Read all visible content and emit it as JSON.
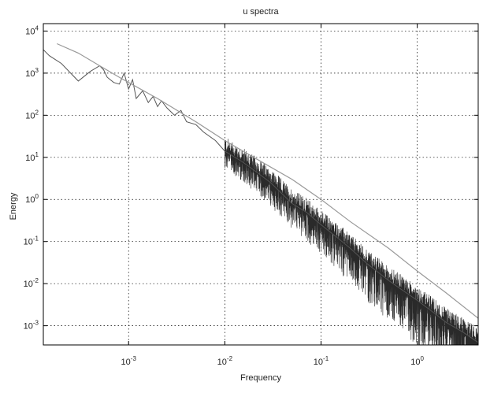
{
  "chart_data": {
    "type": "line",
    "title": "u spectra",
    "xlabel": "Frequency",
    "ylabel": "Energy",
    "xscale": "log",
    "yscale": "log",
    "xlim": [
      0.00013,
      4.3
    ],
    "ylim": [
      0.00035,
      15000
    ],
    "grid": true,
    "legend": "none",
    "x_ticks": [
      {
        "value": 0.001,
        "base": "10",
        "exp": "-3"
      },
      {
        "value": 0.01,
        "base": "10",
        "exp": "-2"
      },
      {
        "value": 0.1,
        "base": "10",
        "exp": "-1"
      },
      {
        "value": 1,
        "base": "10",
        "exp": "0"
      }
    ],
    "y_ticks": [
      {
        "value": 0.001,
        "base": "10",
        "exp": "-3"
      },
      {
        "value": 0.01,
        "base": "10",
        "exp": "-2"
      },
      {
        "value": 0.1,
        "base": "10",
        "exp": "-1"
      },
      {
        "value": 1,
        "base": "10",
        "exp": "0"
      },
      {
        "value": 10,
        "base": "10",
        "exp": "1"
      },
      {
        "value": 100,
        "base": "10",
        "exp": "2"
      },
      {
        "value": 1000,
        "base": "10",
        "exp": "3"
      },
      {
        "value": 10000,
        "base": "10",
        "exp": "4"
      }
    ],
    "series": [
      {
        "color": "#999999",
        "style": "smooth reference curve",
        "x": [
          0.00018,
          0.0003,
          0.0005,
          0.0008,
          0.001,
          0.002,
          0.005,
          0.01,
          0.02,
          0.05,
          0.1,
          0.2,
          0.5,
          1,
          2,
          4.3
        ],
        "y": [
          5000,
          3000,
          1500,
          800,
          600,
          250,
          70,
          25,
          10,
          3,
          1,
          0.3,
          0.07,
          0.02,
          0.006,
          0.0015
        ]
      },
      {
        "color": "#555555",
        "style": "noisy measured spectrum",
        "x": [
          0.00013,
          0.00015,
          0.0002,
          0.00025,
          0.0003,
          0.0004,
          0.0005,
          0.00055,
          0.0006,
          0.0007,
          0.0008,
          0.0009,
          0.001,
          0.0011,
          0.0012,
          0.0014,
          0.0016,
          0.0018,
          0.002,
          0.0022,
          0.0025,
          0.003,
          0.0035,
          0.004,
          0.005,
          0.006,
          0.008,
          0.01,
          0.015,
          0.02,
          0.03,
          0.05,
          0.07,
          0.1,
          0.15,
          0.2,
          0.3,
          0.5,
          0.7,
          1,
          1.5,
          2,
          3,
          4.3
        ],
        "y": [
          3600,
          2600,
          1700,
          1000,
          650,
          1100,
          1500,
          1200,
          800,
          600,
          550,
          1000,
          420,
          700,
          250,
          380,
          200,
          280,
          160,
          220,
          150,
          100,
          130,
          70,
          60,
          40,
          25,
          14,
          8,
          5,
          2.5,
          0.8,
          0.5,
          0.25,
          0.12,
          0.07,
          0.03,
          0.012,
          0.007,
          0.004,
          0.002,
          0.0012,
          0.0007,
          0.0004
        ]
      }
    ]
  }
}
